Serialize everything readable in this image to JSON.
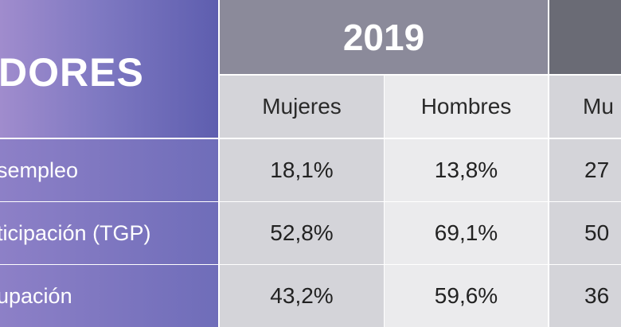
{
  "table": {
    "indicator_header": "DORES",
    "year_header": "2019",
    "next_year_header": "",
    "subheaders": {
      "mujeres": "Mujeres",
      "hombres": "Hombres",
      "mujeres_next": "Mu"
    },
    "rows": [
      {
        "label": "sempleo",
        "mujeres": "18,1%",
        "hombres": "13,8%",
        "mujeres_next": "27"
      },
      {
        "label": "ticipación (TGP)",
        "mujeres": "52,8%",
        "hombres": "69,1%",
        "mujeres_next": "50"
      },
      {
        "label": "upación",
        "mujeres": "43,2%",
        "hombres": "59,6%",
        "mujeres_next": "36"
      }
    ]
  }
}
